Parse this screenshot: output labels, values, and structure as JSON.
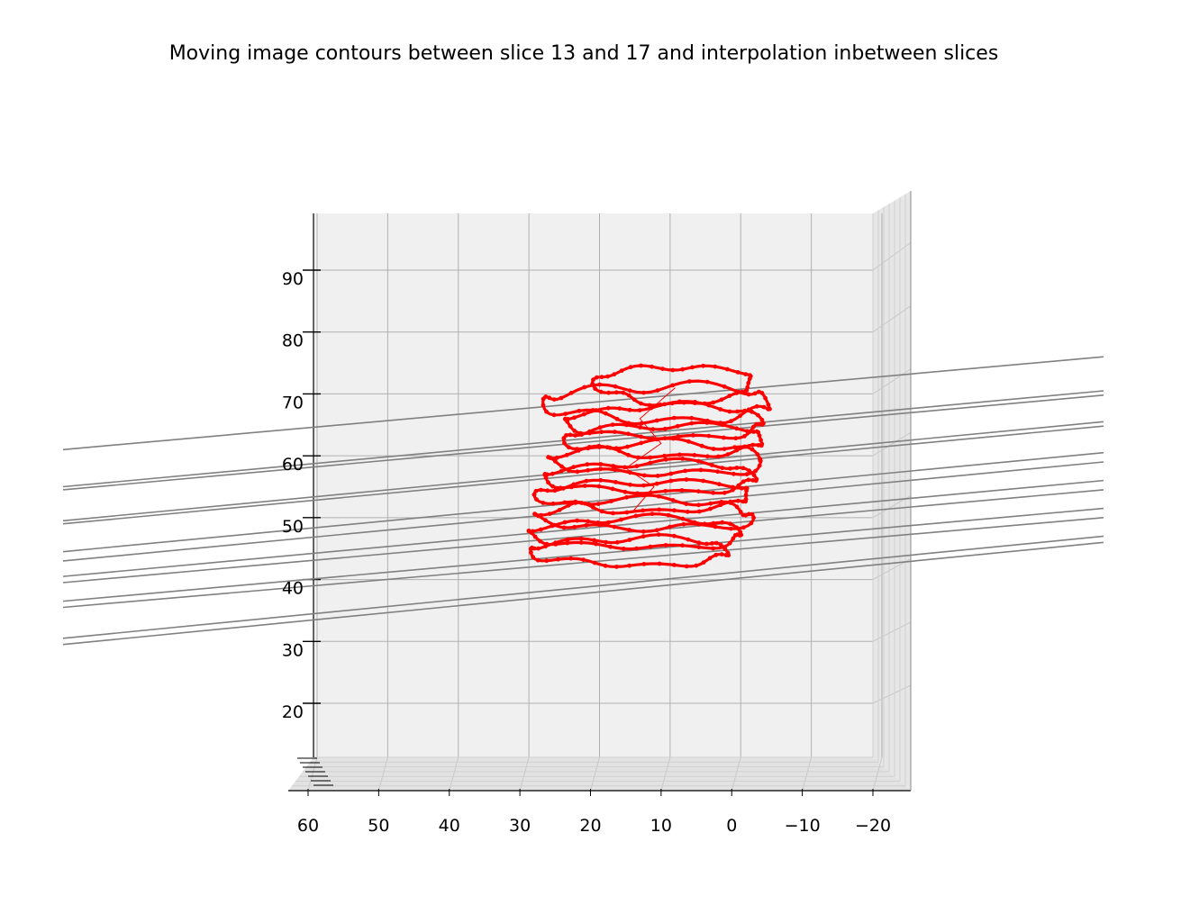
{
  "chart_data": {
    "type": "line",
    "projection": "3d",
    "title": "Moving image contours between slice 13 and 17 and interpolation inbetween slices",
    "xlabel": "",
    "ylabel": "",
    "zlabel": "",
    "x_ticks": [
      "60",
      "50",
      "40",
      "30",
      "20",
      "10",
      "0",
      "−10",
      "−20"
    ],
    "x_tick_values": [
      60,
      50,
      40,
      30,
      20,
      10,
      0,
      -10,
      -20
    ],
    "xlim": [
      62,
      -25
    ],
    "z_ticks": [
      "20",
      "30",
      "40",
      "50",
      "60",
      "70",
      "80",
      "90"
    ],
    "z_tick_values": [
      20,
      30,
      40,
      50,
      60,
      70,
      80,
      90
    ],
    "zlim": [
      11,
      99
    ],
    "y_ticks_note": "depth axis tick labels overlap and are unreadable",
    "grid": true,
    "legend": "none",
    "pane_color": "#f0f0f0",
    "grid_color": "#b0b0b0",
    "series": [
      {
        "role": "contours",
        "color": "#ff0000",
        "marker": "dot",
        "rings": [
          {
            "cx": 8,
            "z": 71.5,
            "rx": 11,
            "ry": 3.0,
            "phase": 0.3,
            "amp": 1.2
          },
          {
            "cx": 10,
            "z": 68.5,
            "rx": 16,
            "ry": 2.8,
            "phase": 1.1,
            "amp": 2.5
          },
          {
            "cx": 9,
            "z": 65.5,
            "rx": 14,
            "ry": 2.6,
            "phase": 2.0,
            "amp": 1.5
          },
          {
            "cx": 9,
            "z": 62.5,
            "rx": 14,
            "ry": 2.5,
            "phase": 0.8,
            "amp": 1.5
          },
          {
            "cx": 10,
            "z": 59.5,
            "rx": 15,
            "ry": 2.5,
            "phase": 2.6,
            "amp": 1.8
          },
          {
            "cx": 11,
            "z": 56.5,
            "rx": 15,
            "ry": 2.4,
            "phase": 1.7,
            "amp": 1.5
          },
          {
            "cx": 12,
            "z": 53.5,
            "rx": 15,
            "ry": 2.4,
            "phase": 0.5,
            "amp": 1.5
          },
          {
            "cx": 12,
            "z": 50.5,
            "rx": 15,
            "ry": 2.4,
            "phase": 3.1,
            "amp": 1.8
          },
          {
            "cx": 13,
            "z": 47.5,
            "rx": 15,
            "ry": 2.4,
            "phase": 2.2,
            "amp": 1.5
          },
          {
            "cx": 14,
            "z": 44.5,
            "rx": 14,
            "ry": 2.2,
            "phase": 1.4,
            "amp": 1.5
          }
        ]
      },
      {
        "role": "interpolation lines",
        "color": "#808080",
        "lines": [
          {
            "z_left": 61,
            "z_right": 76
          },
          {
            "z_left": 55,
            "z_right": 70.5
          },
          {
            "z_left": 54.5,
            "z_right": 69.8
          },
          {
            "z_left": 49.5,
            "z_right": 65.5
          },
          {
            "z_left": 49,
            "z_right": 64.8
          },
          {
            "z_left": 44.5,
            "z_right": 60.5
          },
          {
            "z_left": 43,
            "z_right": 59
          },
          {
            "z_left": 40.5,
            "z_right": 56
          },
          {
            "z_left": 39.5,
            "z_right": 54.5
          },
          {
            "z_left": 36.5,
            "z_right": 51.5
          },
          {
            "z_left": 35.5,
            "z_right": 50
          },
          {
            "z_left": 30.5,
            "z_right": 47
          },
          {
            "z_left": 29.5,
            "z_right": 46
          }
        ]
      }
    ]
  }
}
